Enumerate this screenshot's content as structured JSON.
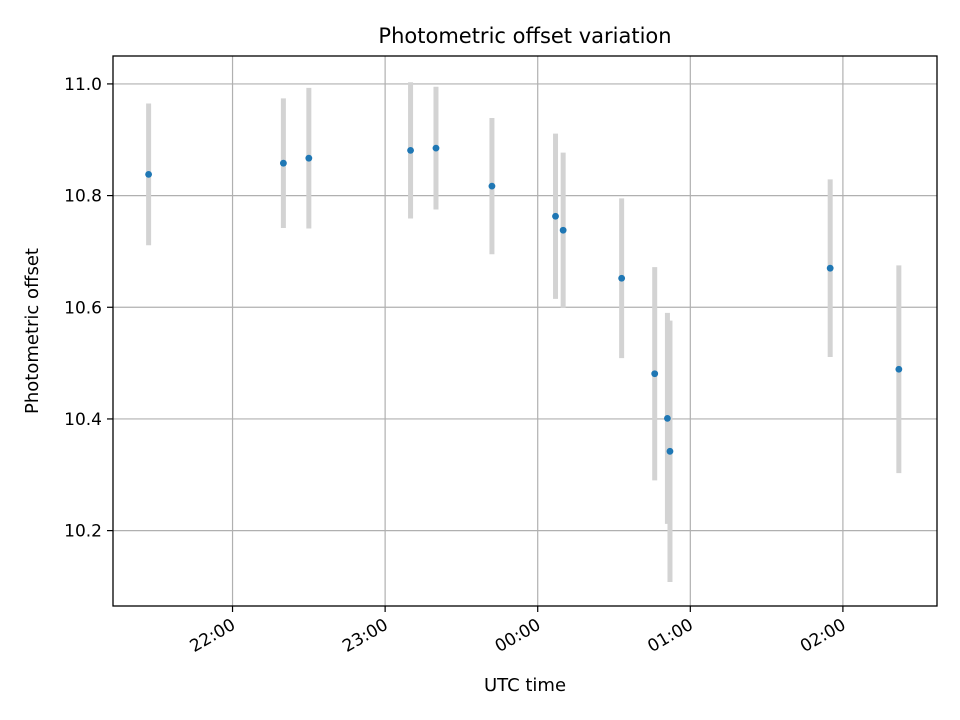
{
  "chart_data": {
    "type": "scatter",
    "title": "Photometric offset variation",
    "xlabel": "UTC time",
    "ylabel": "Photometric offset",
    "x_axis": {
      "kind": "time",
      "range": [
        "21:13",
        "02:37"
      ],
      "ticks": [
        {
          "label": "22:00",
          "time": "22:00"
        },
        {
          "label": "23:00",
          "time": "23:00"
        },
        {
          "label": "00:00",
          "time": "00:00"
        },
        {
          "label": "01:00",
          "time": "01:00"
        },
        {
          "label": "02:00",
          "time": "02:00"
        }
      ]
    },
    "y_axis": {
      "range": [
        10.065,
        11.05
      ],
      "ticks": [
        {
          "label": "10.2",
          "value": 10.2
        },
        {
          "label": "10.4",
          "value": 10.4
        },
        {
          "label": "10.6",
          "value": 10.6
        },
        {
          "label": "10.8",
          "value": 10.8
        },
        {
          "label": "11.0",
          "value": 11.0
        }
      ]
    },
    "grid": true,
    "point_color": "#1f77b4",
    "errorbar_color": "#d3d3d3",
    "points": [
      {
        "time": "21:27",
        "y": 10.838,
        "err": 0.127
      },
      {
        "time": "22:20",
        "y": 10.858,
        "err": 0.116
      },
      {
        "time": "22:30",
        "y": 10.867,
        "err": 0.126
      },
      {
        "time": "23:10",
        "y": 10.881,
        "err": 0.122
      },
      {
        "time": "23:20",
        "y": 10.885,
        "err": 0.11
      },
      {
        "time": "23:42",
        "y": 10.817,
        "err": 0.122
      },
      {
        "time": "00:07",
        "y": 10.763,
        "err": 0.148
      },
      {
        "time": "00:10",
        "y": 10.738,
        "err": 0.139
      },
      {
        "time": "00:33",
        "y": 10.652,
        "err": 0.143
      },
      {
        "time": "00:46",
        "y": 10.481,
        "err": 0.191
      },
      {
        "time": "00:51",
        "y": 10.401,
        "err": 0.189
      },
      {
        "time": "00:52",
        "y": 10.342,
        "err": 0.234
      },
      {
        "time": "01:55",
        "y": 10.67,
        "err": 0.159
      },
      {
        "time": "02:22",
        "y": 10.489,
        "err": 0.186
      }
    ]
  }
}
